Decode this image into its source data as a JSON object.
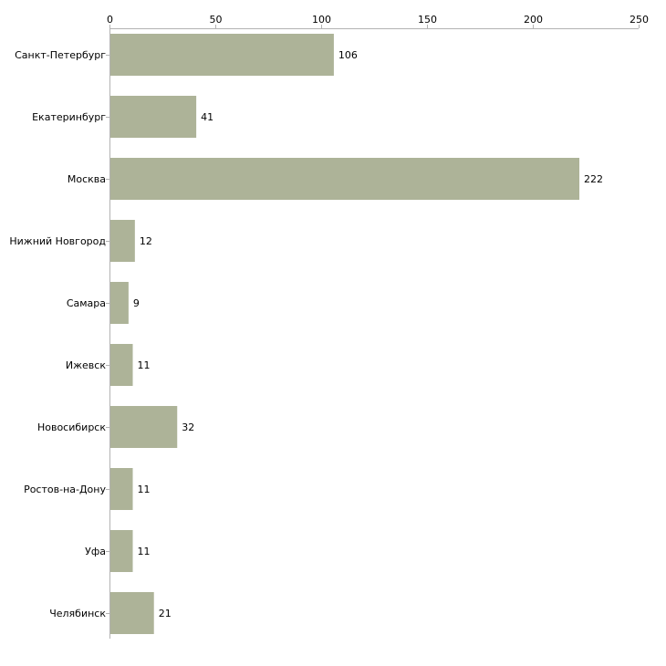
{
  "chart_data": {
    "type": "bar",
    "orientation": "horizontal",
    "title": "",
    "xlabel": "",
    "ylabel": "",
    "xlim": [
      0,
      250
    ],
    "x_ticks": [
      0,
      50,
      100,
      150,
      200,
      250
    ],
    "x_axis_position": "top",
    "grid": false,
    "categories": [
      "Санкт-Петербург",
      "Екатеринбург",
      "Москва",
      "Нижний Новгород",
      "Самара",
      "Ижевск",
      "Новосибирск",
      "Ростов-на-Дону",
      "Уфа",
      "Челябинск"
    ],
    "values": [
      106,
      41,
      222,
      12,
      9,
      11,
      32,
      11,
      11,
      21
    ],
    "colors": {
      "bar": "#adb398",
      "axis": "#b3b3b3",
      "text": "#000000"
    }
  }
}
